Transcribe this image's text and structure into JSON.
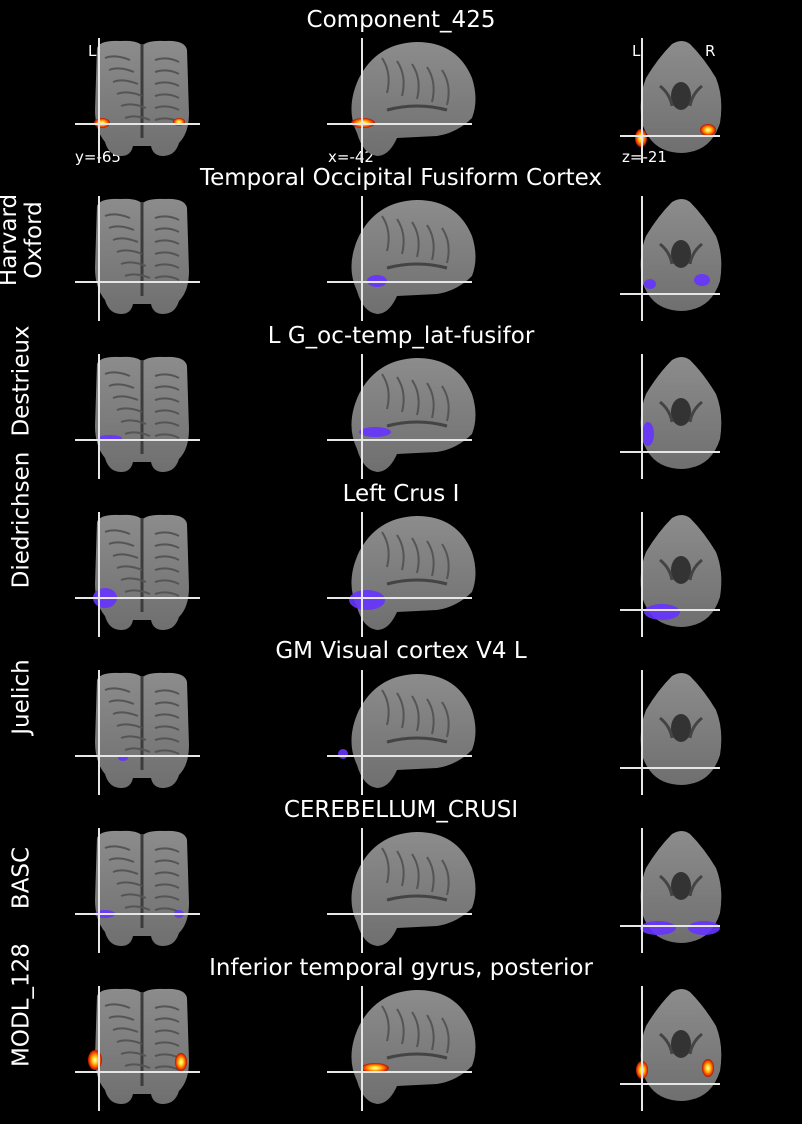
{
  "colors": {
    "atlas_overlay": "#6633ff",
    "component_hot": "#ff6a00",
    "crosshair": "#e6e6e6"
  },
  "component": {
    "title": "Component_425",
    "coords": {
      "coronal": "y=-65",
      "sagittal": "x=-42",
      "axial": "z=-21"
    },
    "orientation": {
      "left": "L",
      "right": "R"
    }
  },
  "atlases": [
    {
      "label_lines": [
        "Harvard",
        "Oxford"
      ],
      "region": "Temporal Occipital Fusiform Cortex"
    },
    {
      "label_lines": [
        "Destrieux"
      ],
      "region": "L G_oc-temp_lat-fusifor"
    },
    {
      "label_lines": [
        "Diedrichsen"
      ],
      "region": "Left Crus I"
    },
    {
      "label_lines": [
        "Juelich"
      ],
      "region": "GM Visual cortex V4 L"
    },
    {
      "label_lines": [
        "BASC"
      ],
      "region": "CEREBELLUM_CRUSI"
    },
    {
      "label_lines": [
        "MODL_128"
      ],
      "region": "Inferior temporal gyrus, posterior"
    }
  ]
}
